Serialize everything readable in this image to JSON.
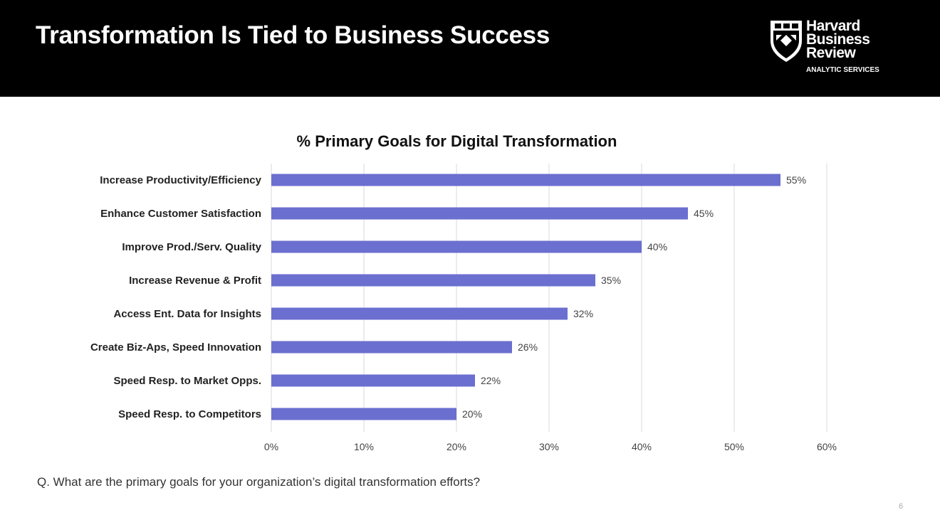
{
  "header": {
    "title": "Transformation Is Tied to Business Success",
    "logo": {
      "line1": "Harvard",
      "line2": "Business",
      "line3": "Review",
      "sub": "ANALYTIC SERVICES"
    }
  },
  "chart_data": {
    "type": "bar",
    "orientation": "horizontal",
    "title": "% Primary Goals for Digital Transformation",
    "categories": [
      "Increase Productivity/Efficiency",
      "Enhance Customer Satisfaction",
      "Improve Prod./Serv. Quality",
      "Increase Revenue & Profit",
      "Access Ent. Data for Insights",
      "Create Biz-Aps, Speed Innovation",
      "Speed Resp. to Market Opps.",
      "Speed Resp. to Competitors"
    ],
    "values": [
      55,
      45,
      40,
      35,
      32,
      26,
      22,
      20
    ],
    "data_labels": [
      "55%",
      "45%",
      "40%",
      "35%",
      "32%",
      "26%",
      "22%",
      "20%"
    ],
    "xlim": [
      0,
      60
    ],
    "x_ticks": [
      "0%",
      "10%",
      "20%",
      "30%",
      "40%",
      "50%",
      "60%"
    ],
    "grid": true,
    "bar_color": "#6b6fcf"
  },
  "footer": {
    "question": "Q. What are the primary goals for your organization’s digital transformation efforts?",
    "page": "6"
  }
}
